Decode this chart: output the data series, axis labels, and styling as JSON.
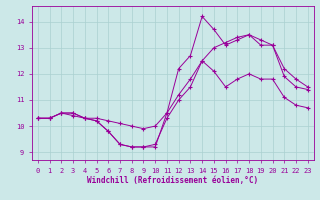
{
  "background_color": "#cce8e8",
  "line_color": "#990099",
  "grid_color": "#aad0d0",
  "xlabel": "Windchill (Refroidissement éolien,°C)",
  "xlim": [
    -0.5,
    23.5
  ],
  "ylim": [
    8.7,
    14.6
  ],
  "yticks": [
    9,
    10,
    11,
    12,
    13,
    14
  ],
  "xticks": [
    0,
    1,
    2,
    3,
    4,
    5,
    6,
    7,
    8,
    9,
    10,
    11,
    12,
    13,
    14,
    15,
    16,
    17,
    18,
    19,
    20,
    21,
    22,
    23
  ],
  "series": [
    {
      "x": [
        0,
        1,
        2,
        3,
        4,
        5,
        6,
        7,
        8,
        9,
        10,
        11,
        12,
        13,
        14,
        15,
        16,
        17,
        18,
        19,
        20,
        21,
        22,
        23
      ],
      "y": [
        10.3,
        10.3,
        10.5,
        10.5,
        10.3,
        10.2,
        9.8,
        9.3,
        9.2,
        9.2,
        9.2,
        10.5,
        12.2,
        12.7,
        14.2,
        13.7,
        13.1,
        13.3,
        13.5,
        13.1,
        13.1,
        11.9,
        11.5,
        11.4
      ]
    },
    {
      "x": [
        0,
        1,
        2,
        3,
        4,
        5,
        6,
        7,
        8,
        9,
        10,
        11,
        12,
        13,
        14,
        15,
        16,
        17,
        18,
        19,
        20,
        21,
        22,
        23
      ],
      "y": [
        10.3,
        10.3,
        10.5,
        10.4,
        10.3,
        10.3,
        10.2,
        10.1,
        10.0,
        9.9,
        10.0,
        10.5,
        11.2,
        11.8,
        12.5,
        13.0,
        13.2,
        13.4,
        13.5,
        13.3,
        13.1,
        12.2,
        11.8,
        11.5
      ]
    },
    {
      "x": [
        0,
        1,
        2,
        3,
        4,
        5,
        6,
        7,
        8,
        9,
        10,
        11,
        12,
        13,
        14,
        15,
        16,
        17,
        18,
        19,
        20,
        21,
        22,
        23
      ],
      "y": [
        10.3,
        10.3,
        10.5,
        10.5,
        10.3,
        10.2,
        9.8,
        9.3,
        9.2,
        9.2,
        9.3,
        10.3,
        11.0,
        11.5,
        12.5,
        12.1,
        11.5,
        11.8,
        12.0,
        11.8,
        11.8,
        11.1,
        10.8,
        10.7
      ]
    }
  ]
}
